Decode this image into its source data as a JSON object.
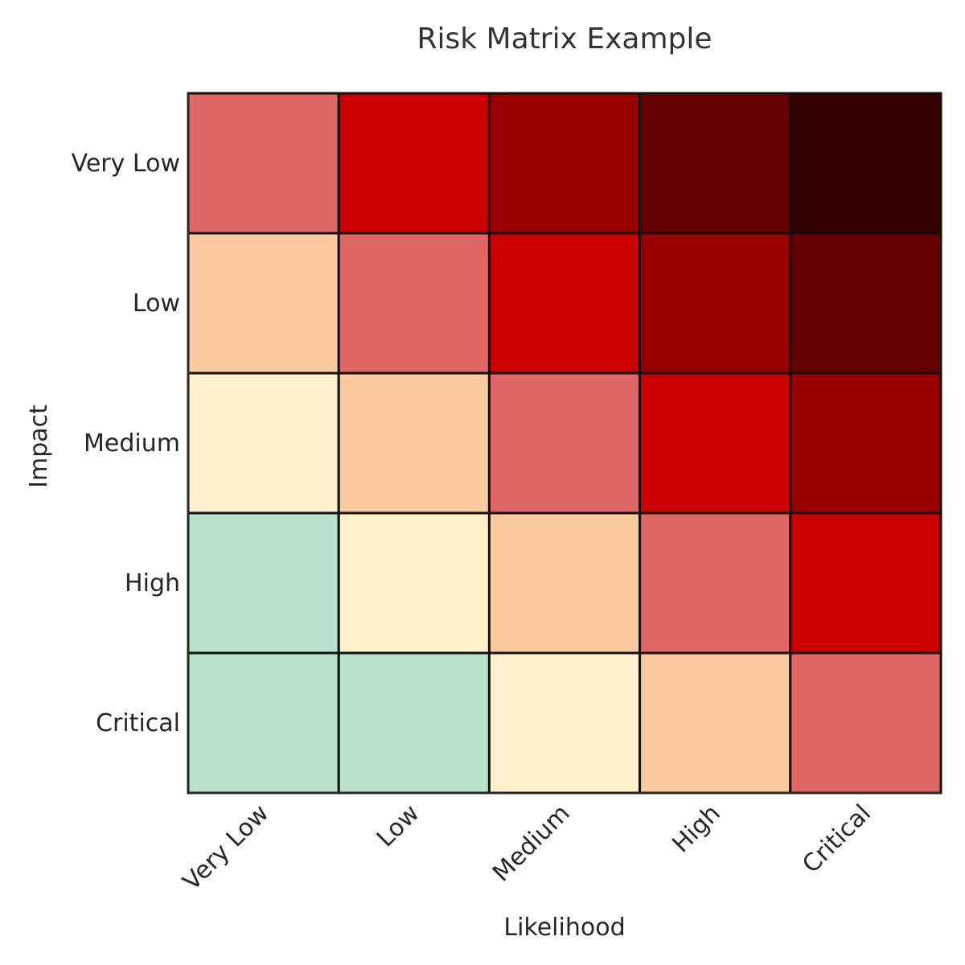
{
  "chart_data": {
    "type": "heatmap",
    "title": "Risk Matrix Example",
    "xlabel": "Likelihood",
    "ylabel": "Impact",
    "x_categories": [
      "Very Low",
      "Low",
      "Medium",
      "High",
      "Critical"
    ],
    "y_categories": [
      "Very Low",
      "Low",
      "Medium",
      "High",
      "Critical"
    ],
    "values": [
      [
        4,
        5,
        6,
        7,
        8
      ],
      [
        3,
        4,
        5,
        6,
        7
      ],
      [
        2,
        3,
        4,
        5,
        6
      ],
      [
        1,
        2,
        3,
        4,
        5
      ],
      [
        1,
        1,
        2,
        3,
        4
      ]
    ],
    "level_colors": {
      "1": "#b7e1cd",
      "2": "#fff0cc",
      "3": "#f8ca9e",
      "4": "#e06666",
      "5": "#cc0000",
      "6": "#990000",
      "7": "#660000",
      "8": "#330000"
    },
    "grid": true,
    "legend": "none"
  }
}
